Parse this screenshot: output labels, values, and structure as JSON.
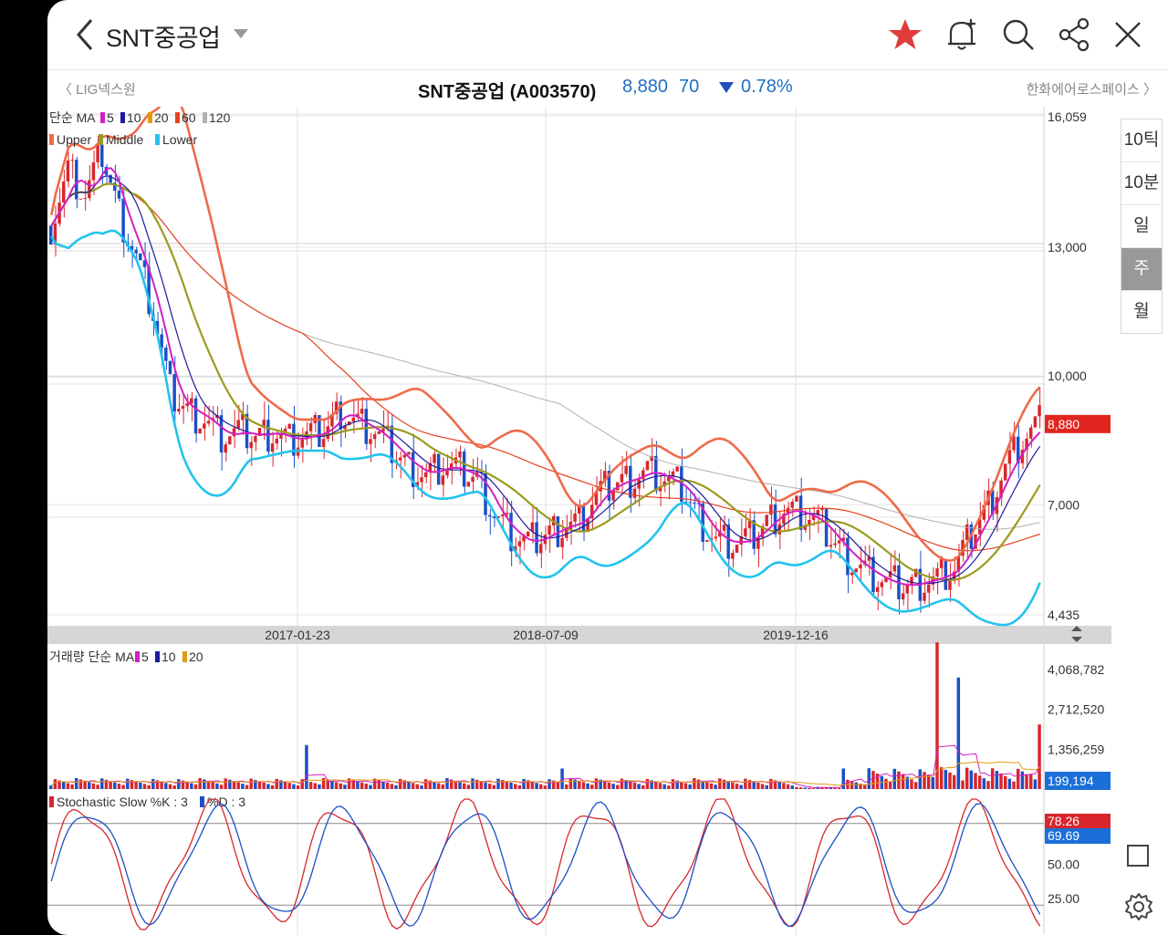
{
  "header": {
    "title": "SNT중공업",
    "icons": [
      "back-icon",
      "dropdown-icon",
      "star-icon",
      "alarm-add-icon",
      "search-icon",
      "share-icon",
      "close-icon"
    ]
  },
  "subheader": {
    "prev_stock": "〈 LIG넥스원",
    "stock_name": "SNT중공업 (A003570)",
    "price": "8,880",
    "change": "70",
    "change_rate": "0.78%",
    "next_stock": "한화에어로스페이스 〉"
  },
  "periods": [
    "10틱",
    "10분",
    "일",
    "주",
    "월"
  ],
  "active_period": "주",
  "legend": {
    "ma_prefix": "단순 MA",
    "ma_items": [
      "5",
      "10",
      "20",
      "60",
      "120"
    ],
    "bb_items": [
      "Upper",
      "Middle",
      "Lower"
    ],
    "vol_prefix": "거래량 단순 MA",
    "vol_items": [
      "5",
      "10",
      "20"
    ],
    "stoch": [
      "Stochastic Slow %K : 3",
      "%D : 3"
    ]
  },
  "colors": {
    "up": "#d8262c",
    "down": "#1b4fc7",
    "ma5": "#d21fc4",
    "ma10": "#1b1b9c",
    "ma20": "#e29a13",
    "ma60": "#e8401e",
    "ma120": "#b0b0b0",
    "upper": "#ef6a4a",
    "middle": "#9b9b1f",
    "lower": "#22c3ec",
    "star": "#e03c3c"
  },
  "price_axis": [
    "16,059",
    "13,000",
    "10,000",
    "7,000",
    "4,435"
  ],
  "price_tag": "8,880",
  "date_axis": [
    "2017-01-23",
    "2018-07-09",
    "2019-12-16"
  ],
  "volume_axis": [
    "4,068,782",
    "2,712,520",
    "1,356,259"
  ],
  "volume_tag": "199,194",
  "stoch_axis": [
    "50.00",
    "25.00"
  ],
  "stoch_tags": [
    "78.26",
    "69.69"
  ],
  "chart_data": {
    "type": "candlestick",
    "ylim": [
      4435,
      16059
    ],
    "x_labels": [
      "2017-01-23",
      "2018-07-09",
      "2019-12-16"
    ],
    "series_close": [
      13500,
      14800,
      14200,
      15200,
      13800,
      12800,
      11500,
      9600,
      9200,
      9000,
      8600,
      8700,
      8600,
      8700,
      8500,
      8600,
      8700,
      9200,
      8900,
      8700,
      8300,
      7900,
      7700,
      7900,
      7800,
      7600,
      6800,
      6300,
      6100,
      6300,
      6500,
      6600,
      7200,
      7500,
      7600,
      7800,
      7600,
      7400,
      6700,
      6200,
      6100,
      6200,
      6600,
      6900,
      6800,
      6600,
      6100,
      5700,
      5400,
      5200,
      5100,
      5200,
      5300,
      5500,
      6300,
      7000,
      7900,
      8500,
      8880
    ],
    "stoch_k_last": 78.26,
    "stoch_d_last": 69.69,
    "volume_last": 199194
  }
}
